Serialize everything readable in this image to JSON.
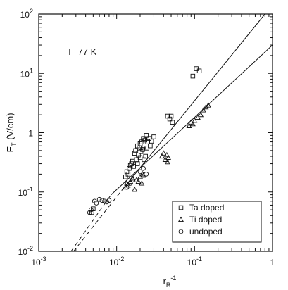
{
  "chart_data": {
    "type": "scatter",
    "title": "",
    "annotation": "T=77 K",
    "xlabel": {
      "base": "r",
      "subscript": "R",
      "superscript": "-1"
    },
    "ylabel": {
      "base": "E",
      "subscript": "T",
      "rest": " (V/cm)"
    },
    "xscale": "log",
    "yscale": "log",
    "xlim": [
      0.001,
      1
    ],
    "ylim": [
      0.01,
      100
    ],
    "xtick_labels": [
      {
        "value": 0.001,
        "base": "10",
        "exp": "-3"
      },
      {
        "value": 0.01,
        "base": "10",
        "exp": "-2"
      },
      {
        "value": 0.1,
        "base": "10",
        "exp": "-1"
      },
      {
        "value": 1,
        "base": "1",
        "exp": ""
      }
    ],
    "ytick_labels": [
      {
        "value": 0.01,
        "base": "10",
        "exp": "-2"
      },
      {
        "value": 0.1,
        "base": "10",
        "exp": "-1"
      },
      {
        "value": 1,
        "base": "1",
        "exp": ""
      },
      {
        "value": 10,
        "base": "10",
        "exp": "1"
      },
      {
        "value": 100,
        "base": "10",
        "exp": "2"
      }
    ],
    "grid": false,
    "legend_position": "bottom-right",
    "series": [
      {
        "name": "Ta doped",
        "marker": "square",
        "points": [
          [
            0.0048,
            0.045
          ],
          [
            0.005,
            0.052
          ],
          [
            0.013,
            0.18
          ],
          [
            0.0135,
            0.22
          ],
          [
            0.014,
            0.2
          ],
          [
            0.0145,
            0.25
          ],
          [
            0.015,
            0.28
          ],
          [
            0.0155,
            0.3
          ],
          [
            0.016,
            0.33
          ],
          [
            0.0165,
            0.27
          ],
          [
            0.017,
            0.45
          ],
          [
            0.0175,
            0.5
          ],
          [
            0.018,
            0.35
          ],
          [
            0.0185,
            0.6
          ],
          [
            0.019,
            0.42
          ],
          [
            0.0195,
            0.55
          ],
          [
            0.02,
            0.65
          ],
          [
            0.0205,
            0.48
          ],
          [
            0.021,
            0.7
          ],
          [
            0.0215,
            0.52
          ],
          [
            0.022,
            0.8
          ],
          [
            0.0225,
            0.6
          ],
          [
            0.023,
            0.75
          ],
          [
            0.0235,
            0.4
          ],
          [
            0.024,
            0.9
          ],
          [
            0.0245,
            0.55
          ],
          [
            0.025,
            0.7
          ],
          [
            0.026,
            0.8
          ],
          [
            0.027,
            0.6
          ],
          [
            0.028,
            0.72
          ],
          [
            0.03,
            0.85
          ],
          [
            0.02,
            0.38
          ],
          [
            0.0185,
            0.3
          ],
          [
            0.0225,
            0.35
          ],
          [
            0.045,
            1.9
          ],
          [
            0.048,
            1.7
          ],
          [
            0.05,
            1.9
          ],
          [
            0.052,
            1.5
          ],
          [
            0.095,
            9.0
          ],
          [
            0.105,
            12.0
          ],
          [
            0.115,
            11.0
          ]
        ]
      },
      {
        "name": "Ti doped",
        "marker": "triangle",
        "points": [
          [
            0.013,
            0.12
          ],
          [
            0.0135,
            0.14
          ],
          [
            0.014,
            0.13
          ],
          [
            0.015,
            0.15
          ],
          [
            0.016,
            0.17
          ],
          [
            0.017,
            0.11
          ],
          [
            0.018,
            0.16
          ],
          [
            0.019,
            0.15
          ],
          [
            0.02,
            0.18
          ],
          [
            0.021,
            0.14
          ],
          [
            0.0215,
            0.2
          ],
          [
            0.022,
            0.19
          ],
          [
            0.038,
            0.4
          ],
          [
            0.04,
            0.45
          ],
          [
            0.042,
            0.35
          ],
          [
            0.044,
            0.42
          ],
          [
            0.046,
            0.38
          ],
          [
            0.045,
            0.32
          ],
          [
            0.085,
            1.3
          ],
          [
            0.09,
            1.5
          ],
          [
            0.095,
            1.4
          ],
          [
            0.1,
            1.6
          ],
          [
            0.11,
            1.8
          ],
          [
            0.12,
            2.0
          ],
          [
            0.13,
            2.4
          ],
          [
            0.14,
            2.7
          ],
          [
            0.15,
            2.9
          ]
        ]
      },
      {
        "name": "undoped",
        "marker": "circle",
        "points": [
          [
            0.0045,
            0.045
          ],
          [
            0.0047,
            0.05
          ],
          [
            0.0052,
            0.07
          ],
          [
            0.0055,
            0.065
          ],
          [
            0.006,
            0.075
          ],
          [
            0.0065,
            0.072
          ],
          [
            0.007,
            0.07
          ],
          [
            0.0075,
            0.068
          ],
          [
            0.008,
            0.072
          ],
          [
            0.0135,
            0.12
          ],
          [
            0.015,
            0.14
          ],
          [
            0.016,
            0.16
          ],
          [
            0.02,
            0.22
          ],
          [
            0.022,
            0.25
          ],
          [
            0.024,
            0.2
          ]
        ]
      }
    ],
    "fit_lines": [
      {
        "style": "solid",
        "from": [
          0.0125,
          0.12
        ],
        "to": [
          0.8,
          100
        ]
      },
      {
        "style": "solid",
        "from": [
          0.0085,
          0.09
        ],
        "to": [
          1.0,
          30
        ]
      },
      {
        "style": "dashed",
        "from": [
          0.0028,
          0.01
        ],
        "to": [
          0.0125,
          0.12
        ]
      },
      {
        "style": "dashed",
        "from": [
          0.0026,
          0.01
        ],
        "to": [
          0.0085,
          0.09
        ]
      }
    ]
  }
}
